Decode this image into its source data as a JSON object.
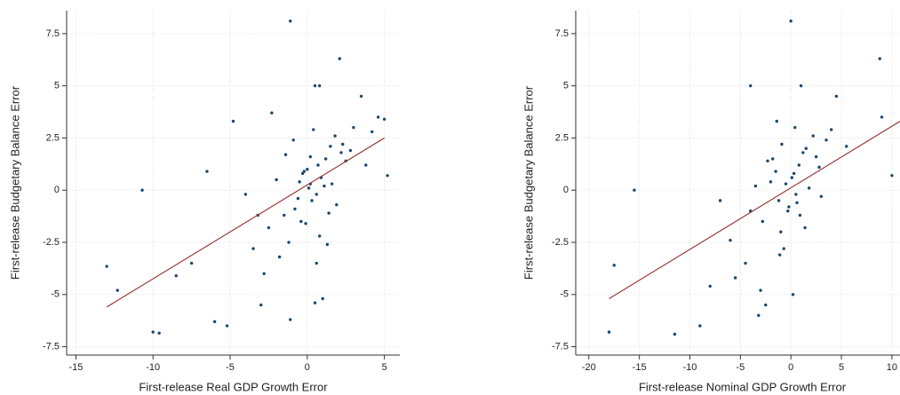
{
  "chart_data": [
    {
      "type": "scatter",
      "xlabel": "First-release Real GDP Growth Error",
      "ylabel": "First-release Budgetary Balance Error",
      "xlim": [
        -15.6,
        6
      ],
      "ylim": [
        -7.9,
        8.6
      ],
      "xticks": [
        -15,
        -10,
        -5,
        0,
        5
      ],
      "yticks": [
        7.5,
        5,
        2.5,
        0,
        -2.5,
        -5,
        -7.5
      ],
      "grid": true,
      "color": "#1a476f",
      "x": [
        -1.1,
        2.1,
        -10.7,
        -13,
        -12.3,
        -10,
        -9.6,
        -6,
        -5.2,
        -8.5,
        -7.5,
        -6.5,
        -4.8,
        -2.3,
        0.5,
        0.8,
        3.5,
        4.6,
        5,
        5.2,
        -1.1,
        0.5,
        1,
        -3,
        0.2,
        -0.3,
        0.6,
        1.2,
        -0.8,
        0.1,
        0.9,
        1.5,
        -1.5,
        2.2,
        -0.5,
        0.3,
        1.8,
        -2,
        0.7,
        -0.1,
        2.8,
        -1.2,
        0.4,
        1.1,
        -0.6,
        3,
        -2.5,
        0,
        1.4,
        -1.8,
        2.5,
        0.8,
        -0.9,
        3.8,
        -3.5,
        -4,
        1.9,
        -1.4,
        0.6,
        -0.2,
        2.3,
        -2.8,
        1.6,
        -0.4,
        4.2,
        -3.2,
        0.2,
        1.3
      ],
      "y": [
        8.1,
        6.3,
        0,
        -3.65,
        -4.8,
        -6.8,
        -6.85,
        -6.3,
        -6.5,
        -4.1,
        -3.5,
        0.9,
        3.3,
        3.7,
        5,
        5,
        4.5,
        3.5,
        3.4,
        0.7,
        -6.2,
        -5.4,
        -5.2,
        -5.5,
        0.3,
        0.8,
        -0.2,
        1.5,
        -0.9,
        0.1,
        0.6,
        2.1,
        -1.2,
        1.8,
        0.4,
        -0.5,
        2.6,
        0.5,
        1.2,
        -1.6,
        1.9,
        -2.5,
        2.9,
        0.2,
        -0.4,
        3,
        -1.8,
        1,
        -1.1,
        -3.2,
        1.4,
        -2.2,
        2.4,
        1.2,
        -2.8,
        -0.2,
        -0.7,
        1.7,
        -3.5,
        0.9,
        2.2,
        -4,
        0.3,
        -1.5,
        2.8,
        -1.2,
        1.6,
        -2.6
      ],
      "fit_line": {
        "x": [
          -13,
          5
        ],
        "y": [
          -5.6,
          2.5
        ],
        "color": "#9b3a3a"
      }
    },
    {
      "type": "scatter",
      "xlabel": "First-release Nominal GDP Growth Error",
      "ylabel": "First-release Budgetary Balance Error",
      "xlim": [
        -21.3,
        10.8
      ],
      "ylim": [
        -7.9,
        8.6
      ],
      "xticks": [
        -20,
        -15,
        -10,
        -5,
        0,
        5,
        10
      ],
      "yticks": [
        7.5,
        5,
        2.5,
        0,
        -2.5,
        -5,
        -7.5
      ],
      "grid": true,
      "color": "#1a476f",
      "x": [
        0,
        8.8,
        -15.5,
        -18,
        -17.5,
        -11.5,
        -9,
        -4,
        1,
        4.5,
        9,
        10,
        -0.5,
        0.3,
        -1.2,
        0.8,
        -2,
        1.5,
        -0.3,
        -1.8,
        0.5,
        2.2,
        -2.8,
        0.1,
        -1,
        1.2,
        -3.5,
        2.8,
        -0.7,
        0.4,
        -1.5,
        3.5,
        -4.5,
        0.9,
        -2.3,
        1.8,
        -0.2,
        -5.5,
        2.5,
        -1.1,
        0.6,
        -3,
        4,
        -6,
        -0.9,
        1.4,
        -2.5,
        -7,
        0.2,
        -1.4,
        3,
        -8,
        -4,
        5.5,
        -3.2
      ],
      "y": [
        8.1,
        6.3,
        0,
        -6.8,
        -3.6,
        -6.9,
        -6.5,
        5,
        5,
        4.5,
        3.5,
        0.7,
        0.3,
        0.8,
        -0.5,
        1.2,
        0.4,
        2,
        -1,
        1.5,
        -0.2,
        2.6,
        -1.5,
        0.6,
        -2,
        1.8,
        0.2,
        1.1,
        -2.8,
        3,
        0.9,
        2.4,
        -3.5,
        -1.2,
        1.4,
        0.1,
        -0.8,
        -4.2,
        1.6,
        -3.1,
        -0.6,
        -4.8,
        2.9,
        -2.4,
        2.2,
        -1.8,
        -5.5,
        -0.5,
        -5,
        3.3,
        -0.3,
        -4.6,
        -1,
        2.1,
        -6
      ],
      "fit_line": {
        "x": [
          -18,
          10.8
        ],
        "y": [
          -5.2,
          3.3
        ],
        "color": "#9b3a3a"
      }
    }
  ]
}
